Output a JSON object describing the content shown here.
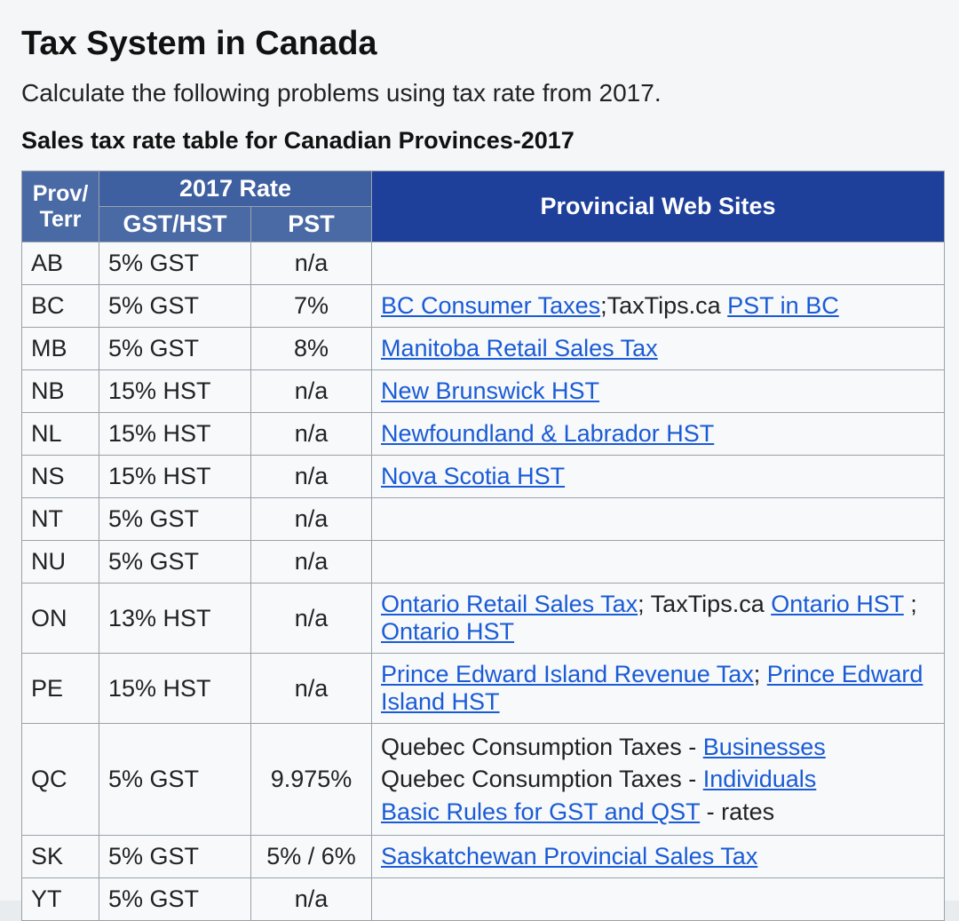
{
  "title": "Tax System in Canada",
  "subtitle": "Calculate the following problems using tax rate from 2017.",
  "caption": "Sales tax rate table for Canadian Provinces-2017",
  "colors": {
    "header_bg_primary": "#1e3f9a",
    "header_bg_secondary": "#4a6aa5",
    "header_text": "#ffffff",
    "link": "#1a5bd6",
    "cell_border": "#9aa2ab",
    "body_text": "#1a1a1a",
    "page_bg": "#f4f6f7"
  },
  "table": {
    "headers": {
      "prov": "Prov/ Terr",
      "rate_group": "2017 Rate",
      "gsthst": "GST/HST",
      "pst": "PST",
      "sites": "Provincial Web Sites"
    },
    "rows": [
      {
        "prov": "AB",
        "gst": "5% GST",
        "pst": "n/a",
        "sites": []
      },
      {
        "prov": "BC",
        "gst": "5% GST",
        "pst": "7%",
        "sites": [
          {
            "t": "BC Consumer Taxes",
            "link": true
          },
          {
            "t": ";TaxTips.ca ",
            "link": false
          },
          {
            "t": "PST in BC",
            "link": true
          }
        ]
      },
      {
        "prov": "MB",
        "gst": "5% GST",
        "pst": "8%",
        "sites": [
          {
            "t": "Manitoba Retail Sales Tax",
            "link": true
          }
        ]
      },
      {
        "prov": "NB",
        "gst": "15% HST",
        "pst": "n/a",
        "sites": [
          {
            "t": "New Brunswick HST",
            "link": true
          }
        ]
      },
      {
        "prov": "NL",
        "gst": "15% HST",
        "pst": "n/a",
        "sites": [
          {
            "t": "Newfoundland & Labrador HST",
            "link": true
          }
        ]
      },
      {
        "prov": "NS",
        "gst": "15% HST",
        "pst": "n/a",
        "sites": [
          {
            "t": "Nova Scotia HST",
            "link": true
          }
        ]
      },
      {
        "prov": "NT",
        "gst": "5% GST",
        "pst": "n/a",
        "sites": []
      },
      {
        "prov": "NU",
        "gst": "5% GST",
        "pst": "n/a",
        "sites": []
      },
      {
        "prov": "ON",
        "gst": "13% HST",
        "pst": "n/a",
        "sites": [
          {
            "t": "Ontario Retail Sales Tax",
            "link": true
          },
          {
            "t": "; TaxTips.ca ",
            "link": false
          },
          {
            "t": "Ontario HST",
            "link": true
          },
          {
            "t": " ; ",
            "link": false
          },
          {
            "t": "Ontario HST",
            "link": true
          }
        ]
      },
      {
        "prov": "PE",
        "gst": "15% HST",
        "pst": "n/a",
        "sites": [
          {
            "t": "Prince Edward Island Revenue Tax",
            "link": true
          },
          {
            "t": "; ",
            "link": false
          },
          {
            "t": "Prince Edward Island HST",
            "link": true
          }
        ]
      },
      {
        "prov": "QC",
        "gst": "5% GST",
        "pst": "9.975%",
        "sites_multiline": [
          [
            {
              "t": "Quebec Consumption Taxes - ",
              "link": false
            },
            {
              "t": "Businesses",
              "link": true
            }
          ],
          [
            {
              "t": "Quebec Consumption Taxes - ",
              "link": false
            },
            {
              "t": "Individuals",
              "link": true
            }
          ],
          [
            {
              "t": "Basic Rules for GST and QST",
              "link": true
            },
            {
              "t": " - rates",
              "link": false
            }
          ]
        ]
      },
      {
        "prov": "SK",
        "gst": "5% GST",
        "pst": "5% / 6%",
        "sites": [
          {
            "t": "Saskatchewan Provincial Sales Tax",
            "link": true
          }
        ]
      },
      {
        "prov": "YT",
        "gst": "5% GST",
        "pst": "n/a",
        "sites": []
      }
    ]
  }
}
